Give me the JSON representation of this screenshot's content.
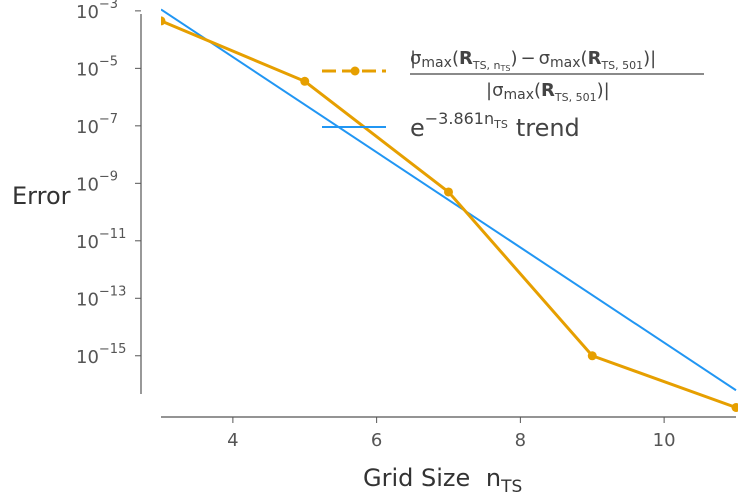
{
  "chart_data": {
    "type": "line",
    "xlabel": "Grid Size",
    "xlabel_sub": "TS",
    "xlabel_var": "n",
    "ylabel": "Error",
    "yscale": "log",
    "xlim": [
      3,
      11
    ],
    "ylim_exp": [
      -16.4,
      -2.9
    ],
    "xticks": [
      4,
      6,
      8,
      10
    ],
    "yticks_exp": [
      -3,
      -5,
      -7,
      -9,
      -11,
      -13,
      -15
    ],
    "legend_position": "top-right",
    "series": [
      {
        "name": "|σmax(R_TS,nTS) − σmax(R_TS,501)| / |σmax(R_TS,501)|",
        "color": "#E69F00",
        "marker": "circle",
        "x": [
          3,
          5,
          7,
          9,
          11
        ],
        "log10_y": [
          -3.35,
          -5.45,
          -9.3,
          -15.0,
          -16.8
        ]
      },
      {
        "name": "e^(−3.861 nTS) trend",
        "color": "#2196F3",
        "marker": "none",
        "x": [
          3,
          11
        ],
        "log10_y": [
          -2.95,
          -16.2
        ]
      }
    ],
    "legend": {
      "sigma": "σ",
      "max": "max",
      "R": "R",
      "sub_nts": "TS, n",
      "sub_nts_inner": "TS",
      "sub_501": "TS, 501",
      "minus": "−",
      "trend_base": "e",
      "trend_exp": "−3.861n",
      "trend_exp_sub": "TS",
      "trend_word": "trend"
    }
  }
}
